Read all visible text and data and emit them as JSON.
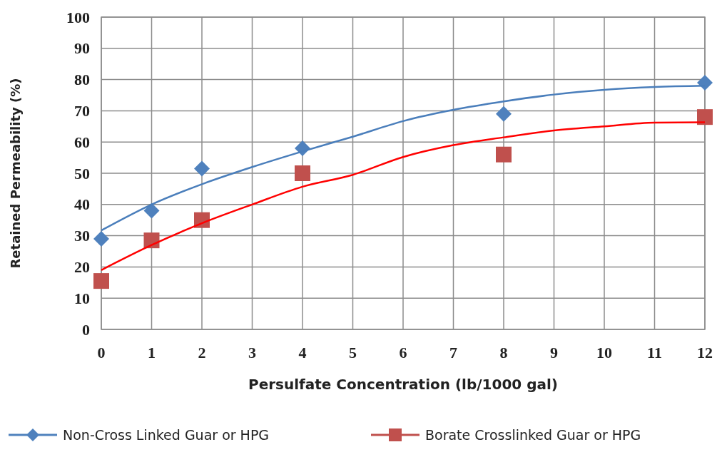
{
  "chart_data": {
    "type": "scatter",
    "xlabel": "Persulfate Concentration (lb/1000 gal)",
    "ylabel": "Retained Permeability (%)",
    "xlim": [
      0,
      12
    ],
    "xticks": [
      0,
      1,
      2,
      3,
      4,
      5,
      6,
      7,
      8,
      9,
      10,
      11,
      12
    ],
    "ylim": [
      0,
      100
    ],
    "yticks": [
      0,
      10,
      20,
      30,
      40,
      50,
      60,
      70,
      80,
      90,
      100
    ],
    "grid": true,
    "legend": "bottom",
    "series": [
      {
        "name": "Non-Cross Linked Guar or HPG",
        "color": "#4f81bd",
        "marker": "diamond",
        "x": [
          0,
          1,
          2,
          4,
          8,
          12
        ],
        "values": [
          29,
          38,
          51.5,
          58,
          69,
          79
        ]
      },
      {
        "name": "Borate Crosslinked Guar or HPG",
        "color": "#c0504d",
        "marker": "square",
        "x": [
          0,
          1,
          2,
          4,
          8,
          12
        ],
        "values": [
          15.5,
          28.5,
          35,
          50,
          56,
          68
        ]
      },
      {
        "type": "line",
        "color": "#4a7ebb",
        "marker": "none",
        "x": [
          0,
          1,
          2,
          3,
          4,
          5,
          6,
          7,
          8,
          9,
          10,
          11,
          12
        ],
        "values": [
          31.7,
          40,
          46.5,
          52,
          57,
          61.7,
          66.7,
          70.3,
          73,
          75.2,
          76.7,
          77.6,
          78
        ]
      },
      {
        "type": "line",
        "color": "#ff0000",
        "marker": "none",
        "x": [
          0,
          1,
          2,
          3,
          4,
          5,
          6,
          7,
          8,
          9,
          10,
          11,
          12
        ],
        "values": [
          19,
          27,
          34,
          40,
          45.7,
          49.5,
          55.2,
          59,
          61.5,
          63.7,
          65,
          66.2,
          66.3
        ]
      }
    ]
  }
}
